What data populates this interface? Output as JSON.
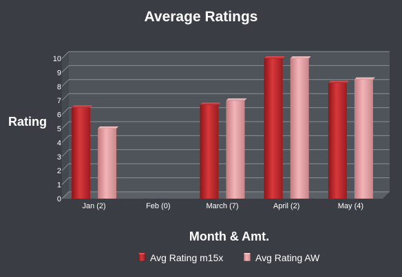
{
  "chart_data": {
    "type": "bar",
    "title": "Average Ratings",
    "xlabel": "Month & Amt.",
    "ylabel": "Rating",
    "categories": [
      "Jan (2)",
      "Feb (0)",
      "March (7)",
      "April (2)",
      "May (4)"
    ],
    "series": [
      {
        "name": "Avg Rating m15x",
        "values": [
          6.5,
          0,
          6.7,
          10,
          8.25
        ],
        "color": "#c8282c"
      },
      {
        "name": "Avg Rating AW",
        "values": [
          5,
          0,
          7,
          10,
          8.5
        ],
        "color": "#e8a0a4"
      }
    ],
    "ylim": [
      0,
      10
    ],
    "yticks": [
      "0",
      "1",
      "2",
      "3",
      "4",
      "5",
      "6",
      "7",
      "8",
      "9",
      "10"
    ],
    "grid": true,
    "legend_position": "bottom",
    "colors": {
      "background": "#3a3e44",
      "plot_area": "#4e545a",
      "gridline": "#8a9096"
    }
  }
}
